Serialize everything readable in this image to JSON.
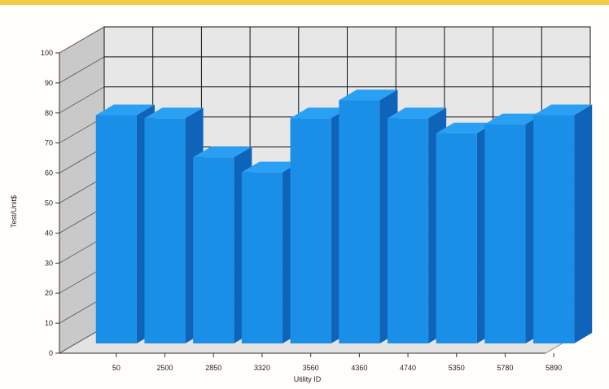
{
  "colors": {
    "bar_front": "#1a8fe8",
    "bar_side": "#0f63b8",
    "bar_top": "#2aa0f5",
    "wall": "#e7e7e7",
    "side_wall": "#c9c9c9",
    "floor": "#e3e3e3",
    "grid": "#111111"
  },
  "chart_data": {
    "type": "bar",
    "title": "",
    "xlabel": "Utility ID",
    "ylabel": "Test/Unit$",
    "categories": [
      "50",
      "2500",
      "2850",
      "3320",
      "3560",
      "4360",
      "4740",
      "5350",
      "5780",
      "5890"
    ],
    "values": [
      76,
      75,
      62,
      57,
      75,
      81,
      75,
      70,
      73,
      76
    ],
    "ylim": [
      0,
      100
    ],
    "yticks": [
      0,
      10,
      20,
      30,
      40,
      50,
      60,
      70,
      80,
      90,
      100
    ],
    "grid": true,
    "legend": "none",
    "projection": "3d"
  }
}
